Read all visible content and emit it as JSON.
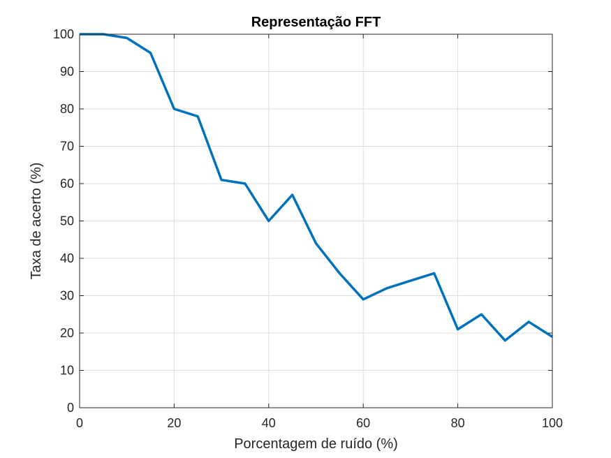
{
  "chart_data": {
    "type": "line",
    "title": "Representação FFT",
    "xlabel": "Porcentagem de ruído (%)",
    "ylabel": "Taxa de acerto (%)",
    "xlim": [
      0,
      100
    ],
    "ylim": [
      0,
      100
    ],
    "xticks": [
      "0",
      "20",
      "40",
      "60",
      "80",
      "100"
    ],
    "yticks": [
      "0",
      "10",
      "20",
      "30",
      "40",
      "50",
      "60",
      "70",
      "80",
      "90",
      "100"
    ],
    "grid": true,
    "series": [
      {
        "color": "#0072BD",
        "x": [
          0,
          5,
          10,
          15,
          20,
          25,
          30,
          35,
          40,
          45,
          50,
          55,
          60,
          65,
          70,
          75,
          80,
          85,
          90,
          95,
          100
        ],
        "y": [
          100,
          100,
          99,
          95,
          80,
          78,
          61,
          60,
          50,
          57,
          44,
          36,
          29,
          32,
          34,
          36,
          21,
          25,
          18,
          23,
          19
        ]
      }
    ]
  }
}
